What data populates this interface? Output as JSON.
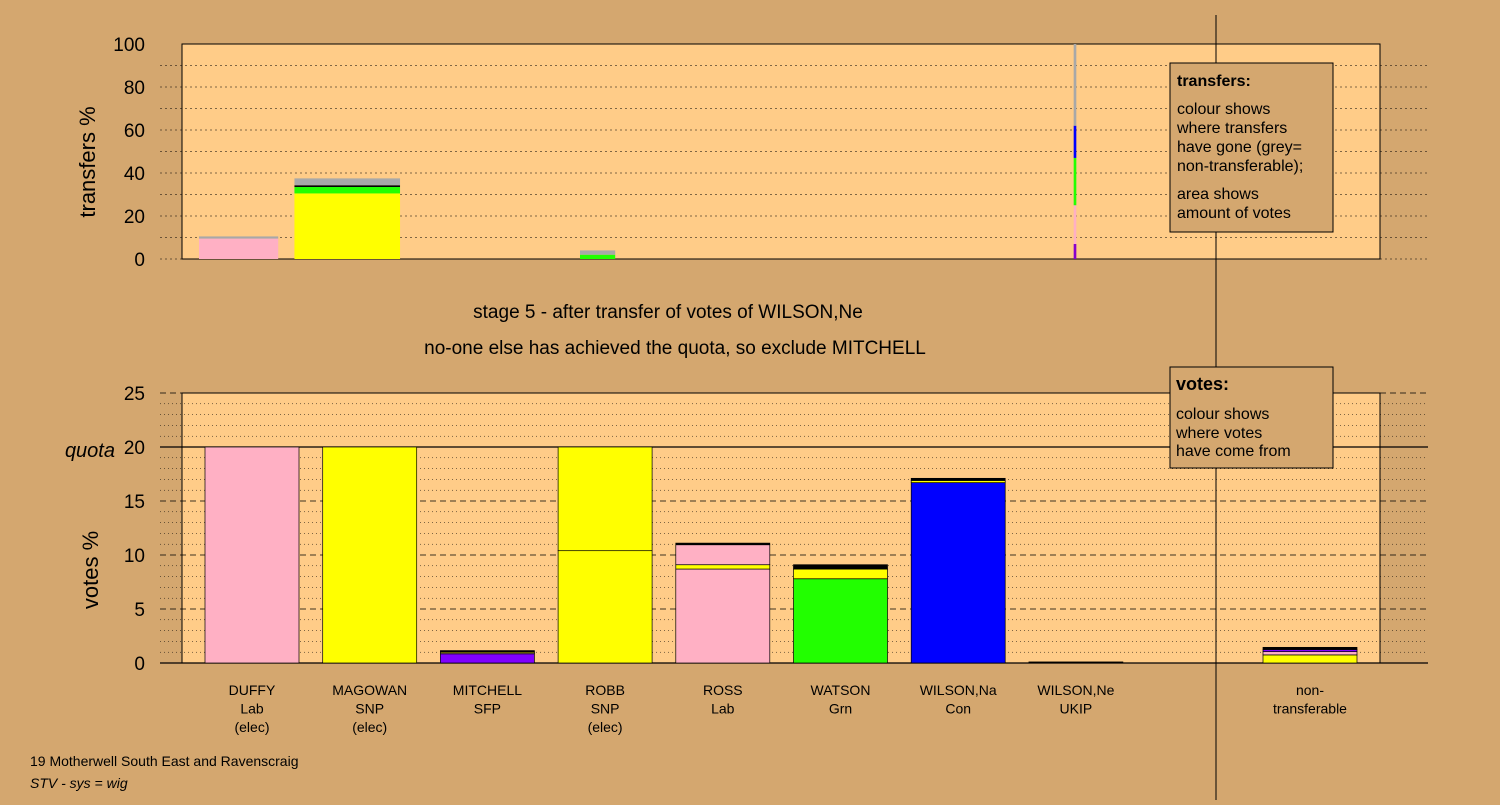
{
  "top_panel": {
    "ylabel": "transfers %",
    "yticks": [
      0,
      20,
      40,
      60,
      80,
      100
    ],
    "legend": {
      "title": "transfers:",
      "lines": [
        "colour shows",
        "where transfers",
        "have gone (grey=",
        "non-transferable);",
        "area shows",
        "amount of votes"
      ]
    }
  },
  "headline": {
    "line1": "stage 5 - after transfer of votes of WILSON,Ne",
    "line2": "no-one else has achieved the quota, so exclude MITCHELL"
  },
  "bottom_panel": {
    "ylabel": "votes %",
    "quota_label": "quota",
    "yticks": [
      0,
      5,
      10,
      15,
      20,
      25
    ],
    "legend": {
      "title": "votes:",
      "lines": [
        "colour shows",
        "where votes",
        "have come from"
      ]
    }
  },
  "footer": {
    "line1": "19 Motherwell South East and Ravenscraig",
    "line2": "STV - sys = wig"
  },
  "colors": {
    "background": "#d4a76f",
    "plot": "#ffcc88",
    "Lab": "#ffb0c4",
    "SNP": "#ffff00",
    "SFP": "#8000ff",
    "Grn": "#22ff00",
    "Con": "#0000ff",
    "UKIP": "#8800cc",
    "nontransferable": "#a8a8a8"
  },
  "chart_data": [
    {
      "type": "bar",
      "title": "",
      "ylabel": "transfers %",
      "ylim": [
        0,
        100
      ],
      "note": "stacked share of transferred votes received by each candidate",
      "categories": [
        "DUFFY",
        "MAGOWAN",
        "MITCHELL",
        "ROBB",
        "ROSS",
        "WATSON",
        "WILSON,Na",
        "WILSON,Ne",
        "non-transferable"
      ],
      "width_units": [
        0.9,
        1.2,
        0,
        0.4,
        0,
        0,
        0,
        0.03,
        0
      ],
      "stacks": [
        [
          {
            "color": "#ffb0c4",
            "value": 9.5
          },
          {
            "color": "#a8a8a8",
            "value": 1
          }
        ],
        [
          {
            "color": "#ffff00",
            "value": 30.5
          },
          {
            "color": "#22ff00",
            "value": 3
          },
          {
            "color": "#000000",
            "value": 0.8
          },
          {
            "color": "#a8a8a8",
            "value": 3.2
          }
        ],
        [],
        [
          {
            "color": "#22ff00",
            "value": 2
          },
          {
            "color": "#a8a8a8",
            "value": 2
          }
        ],
        [],
        [],
        [],
        [
          {
            "color": "#8800cc",
            "value": 7
          },
          {
            "color": "#ffb0c4",
            "value": 18
          },
          {
            "color": "#22ff00",
            "value": 22
          },
          {
            "color": "#0000ff",
            "value": 15
          },
          {
            "color": "#a8a8a8",
            "value": 38
          }
        ],
        []
      ]
    },
    {
      "type": "bar",
      "title": "",
      "ylabel": "votes %",
      "ylim": [
        0,
        25
      ],
      "quota": 20,
      "categories": [
        {
          "name": "DUFFY",
          "party": "Lab",
          "status": "(elec)"
        },
        {
          "name": "MAGOWAN",
          "party": "SNP",
          "status": "(elec)"
        },
        {
          "name": "MITCHELL",
          "party": "SFP",
          "status": ""
        },
        {
          "name": "ROBB",
          "party": "SNP",
          "status": "(elec)"
        },
        {
          "name": "ROSS",
          "party": "Lab",
          "status": ""
        },
        {
          "name": "WATSON",
          "party": "Grn",
          "status": ""
        },
        {
          "name": "WILSON,Na",
          "party": "Con",
          "status": ""
        },
        {
          "name": "WILSON,Ne",
          "party": "UKIP",
          "status": ""
        },
        {
          "name": "",
          "party": "",
          "status": ""
        },
        {
          "name": "non-",
          "party": "transferable",
          "status": ""
        }
      ],
      "stacks": [
        [
          {
            "color": "#ffb0c4",
            "value": 20
          }
        ],
        [
          {
            "color": "#ffff00",
            "value": 20
          }
        ],
        [
          {
            "color": "#8000ff",
            "value": 0.85
          },
          {
            "color": "#ffb0c4",
            "value": 0.1
          },
          {
            "color": "#ffff00",
            "value": 0.1
          },
          {
            "color": "#000000",
            "value": 0.1
          }
        ],
        [
          {
            "color": "#ffff00",
            "value": 10.4
          },
          {
            "color": "#ffff00",
            "value": 9.6
          }
        ],
        [
          {
            "color": "#ffb0c4",
            "value": 8.7
          },
          {
            "color": "#ffff00",
            "value": 0.4
          },
          {
            "color": "#ffb0c4",
            "value": 1.85
          },
          {
            "color": "#000000",
            "value": 0.15
          }
        ],
        [
          {
            "color": "#22ff00",
            "value": 7.8
          },
          {
            "color": "#ffff00",
            "value": 0.9
          },
          {
            "color": "#000000",
            "value": 0.4
          }
        ],
        [
          {
            "color": "#0000ff",
            "value": 16.7
          },
          {
            "color": "#ffff00",
            "value": 0.2
          },
          {
            "color": "#000000",
            "value": 0.2
          }
        ],
        [
          {
            "color": "#000000",
            "value": 0.1
          }
        ],
        [],
        [
          {
            "color": "#ffff00",
            "value": 0.75
          },
          {
            "color": "#ffb0c4",
            "value": 0.3
          },
          {
            "color": "#8000ff",
            "value": 0.2
          },
          {
            "color": "#000000",
            "value": 0.2
          }
        ]
      ]
    }
  ]
}
